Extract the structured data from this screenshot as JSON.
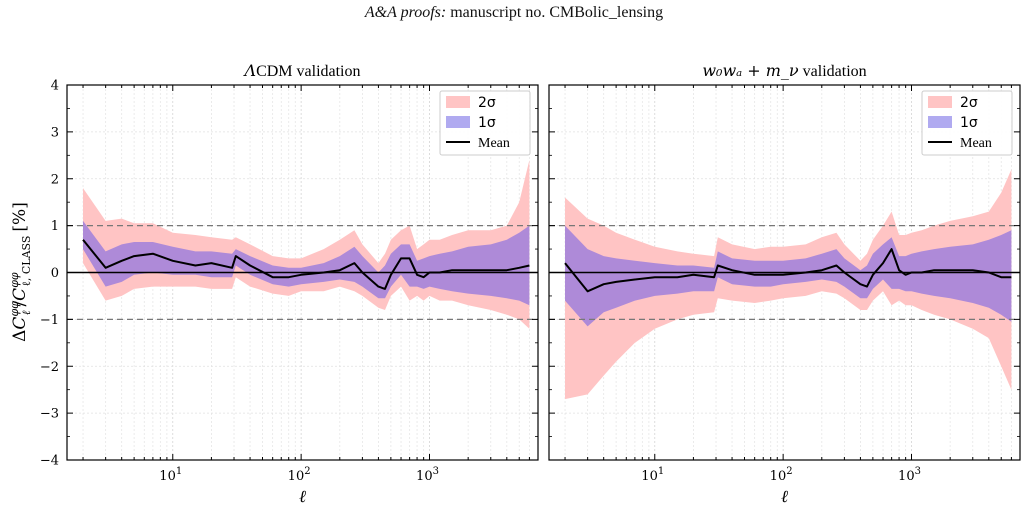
{
  "header": {
    "journal": "A&A proofs:",
    "manuscript": "manuscript no. CMBolic_lensing"
  },
  "ylabel": "ΔC_ℓ^φφ / C_ℓ,CLASS^φφ [%]",
  "chart_data": [
    {
      "type": "area",
      "title": "ΛCDM validation",
      "title_math": "Λ",
      "title_rest": "CDM validation",
      "xlabel": "ℓ",
      "ylabel": "ΔC_ℓ^φφ / C_ℓ,CLASS^φφ [%]",
      "xscale": "log",
      "xlim": [
        1.5,
        7000
      ],
      "ylim": [
        -4,
        4
      ],
      "xticks": [
        {
          "v": 10,
          "label": "10",
          "exp": "1"
        },
        {
          "v": 100,
          "label": "10",
          "exp": "2"
        },
        {
          "v": 1000,
          "label": "10",
          "exp": "3"
        }
      ],
      "yticks": [
        -4,
        -3,
        -2,
        -1,
        0,
        1,
        2,
        3,
        4
      ],
      "reference_lines": [
        {
          "y": 0,
          "style": "solid"
        },
        {
          "y": 1,
          "style": "dashed"
        },
        {
          "y": -1,
          "style": "dashed"
        }
      ],
      "grid": true,
      "legend": {
        "placement": "top-right",
        "entries": [
          {
            "label": "2σ",
            "color": "#ffc4c4"
          },
          {
            "label": "1σ",
            "color": "#b0aaf0"
          },
          {
            "label": "Mean",
            "color": "#000000"
          }
        ]
      },
      "x": [
        2,
        3,
        4,
        5,
        7,
        10,
        15,
        20,
        29,
        31,
        40,
        60,
        80,
        100,
        150,
        200,
        260,
        300,
        400,
        450,
        500,
        600,
        700,
        800,
        900,
        1000,
        1200,
        1500,
        2000,
        3000,
        4000,
        5000,
        6000
      ],
      "series": [
        {
          "name": "2σ upper",
          "values": [
            1.8,
            1.1,
            1.15,
            1.05,
            1.05,
            0.85,
            0.8,
            0.75,
            0.7,
            0.75,
            0.6,
            0.35,
            0.3,
            0.3,
            0.5,
            0.7,
            0.9,
            0.6,
            0.2,
            0.4,
            0.7,
            0.9,
            1.0,
            0.5,
            0.6,
            0.7,
            0.7,
            0.8,
            0.9,
            0.9,
            1.0,
            1.5,
            2.4
          ]
        },
        {
          "name": "2σ lower",
          "values": [
            0.2,
            -0.6,
            -0.5,
            -0.35,
            -0.3,
            -0.3,
            -0.3,
            -0.35,
            -0.35,
            -0.1,
            -0.3,
            -0.45,
            -0.5,
            -0.4,
            -0.4,
            -0.3,
            -0.4,
            -0.5,
            -0.75,
            -0.8,
            -0.5,
            -0.3,
            -0.6,
            -0.5,
            -0.6,
            -0.5,
            -0.6,
            -0.6,
            -0.7,
            -0.8,
            -0.9,
            -1.0,
            -1.2
          ]
        },
        {
          "name": "1σ upper",
          "values": [
            1.1,
            0.45,
            0.6,
            0.65,
            0.65,
            0.55,
            0.45,
            0.45,
            0.4,
            0.5,
            0.35,
            0.15,
            0.1,
            0.1,
            0.2,
            0.35,
            0.55,
            0.35,
            0.0,
            0.15,
            0.4,
            0.6,
            0.6,
            0.25,
            0.3,
            0.35,
            0.4,
            0.45,
            0.55,
            0.6,
            0.7,
            0.85,
            1.0
          ]
        },
        {
          "name": "1σ lower",
          "values": [
            0.5,
            -0.3,
            -0.2,
            -0.05,
            0.0,
            -0.05,
            -0.05,
            -0.1,
            -0.1,
            0.15,
            -0.05,
            -0.25,
            -0.3,
            -0.25,
            -0.2,
            -0.15,
            -0.2,
            -0.3,
            -0.55,
            -0.55,
            -0.3,
            -0.05,
            -0.3,
            -0.3,
            -0.35,
            -0.3,
            -0.35,
            -0.4,
            -0.45,
            -0.5,
            -0.55,
            -0.6,
            -0.7
          ]
        },
        {
          "name": "Mean",
          "values": [
            0.7,
            0.1,
            0.25,
            0.35,
            0.4,
            0.25,
            0.15,
            0.2,
            0.1,
            0.35,
            0.15,
            -0.1,
            -0.1,
            -0.05,
            -0.0,
            0.05,
            0.2,
            0.0,
            -0.3,
            -0.35,
            -0.05,
            0.3,
            0.3,
            -0.05,
            -0.1,
            0.0,
            0.0,
            0.05,
            0.05,
            0.05,
            0.05,
            0.1,
            0.15
          ]
        }
      ]
    },
    {
      "type": "area",
      "title": "w0wa + mν validation",
      "title_math": "w₀wₐ + m_ν",
      "title_rest": " validation",
      "xlabel": "ℓ",
      "xscale": "log",
      "xlim": [
        1.5,
        7000
      ],
      "ylim": [
        -4,
        4
      ],
      "xticks": [
        {
          "v": 10,
          "label": "10",
          "exp": "1"
        },
        {
          "v": 100,
          "label": "10",
          "exp": "2"
        },
        {
          "v": 1000,
          "label": "10",
          "exp": "3"
        }
      ],
      "yticks": [
        -4,
        -3,
        -2,
        -1,
        0,
        1,
        2,
        3,
        4
      ],
      "reference_lines": [
        {
          "y": 0,
          "style": "solid"
        },
        {
          "y": 1,
          "style": "dashed"
        },
        {
          "y": -1,
          "style": "dashed"
        }
      ],
      "grid": true,
      "legend": {
        "placement": "top-right",
        "entries": [
          {
            "label": "2σ",
            "color": "#ffc4c4"
          },
          {
            "label": "1σ",
            "color": "#b0aaf0"
          },
          {
            "label": "Mean",
            "color": "#000000"
          }
        ]
      },
      "x": [
        2,
        3,
        4,
        5,
        7,
        10,
        15,
        20,
        29,
        31,
        40,
        60,
        80,
        100,
        150,
        200,
        260,
        300,
        400,
        450,
        500,
        600,
        700,
        800,
        900,
        1000,
        1200,
        1500,
        2000,
        3000,
        4000,
        5000,
        6000
      ],
      "series": [
        {
          "name": "2σ upper",
          "values": [
            1.6,
            1.15,
            1.0,
            0.85,
            0.7,
            0.55,
            0.45,
            0.4,
            0.35,
            0.75,
            0.6,
            0.5,
            0.55,
            0.55,
            0.6,
            0.75,
            0.85,
            0.6,
            0.25,
            0.4,
            0.7,
            1.0,
            1.3,
            0.8,
            0.8,
            0.85,
            0.9,
            1.0,
            1.1,
            1.2,
            1.3,
            1.7,
            2.2
          ]
        },
        {
          "name": "2σ lower",
          "values": [
            -2.7,
            -2.6,
            -2.2,
            -1.9,
            -1.5,
            -1.2,
            -1.0,
            -0.9,
            -0.85,
            -0.55,
            -0.6,
            -0.65,
            -0.6,
            -0.55,
            -0.5,
            -0.4,
            -0.45,
            -0.55,
            -0.8,
            -0.8,
            -0.6,
            -0.4,
            -0.7,
            -0.6,
            -0.7,
            -0.7,
            -0.8,
            -0.9,
            -1.0,
            -1.2,
            -1.4,
            -2.0,
            -2.5
          ]
        },
        {
          "name": "1σ upper",
          "values": [
            1.0,
            0.5,
            0.35,
            0.3,
            0.25,
            0.2,
            0.15,
            0.15,
            0.1,
            0.45,
            0.3,
            0.25,
            0.25,
            0.25,
            0.3,
            0.4,
            0.5,
            0.3,
            0.05,
            0.15,
            0.4,
            0.6,
            0.75,
            0.35,
            0.35,
            0.4,
            0.45,
            0.5,
            0.55,
            0.6,
            0.7,
            0.8,
            0.9
          ]
        },
        {
          "name": "1σ lower",
          "values": [
            -0.6,
            -1.15,
            -0.85,
            -0.75,
            -0.6,
            -0.5,
            -0.45,
            -0.4,
            -0.4,
            -0.1,
            -0.25,
            -0.3,
            -0.3,
            -0.25,
            -0.2,
            -0.15,
            -0.2,
            -0.3,
            -0.55,
            -0.55,
            -0.35,
            -0.15,
            -0.35,
            -0.35,
            -0.4,
            -0.4,
            -0.45,
            -0.5,
            -0.55,
            -0.65,
            -0.75,
            -0.9,
            -1.05
          ]
        },
        {
          "name": "Mean",
          "values": [
            0.2,
            -0.4,
            -0.25,
            -0.2,
            -0.15,
            -0.1,
            -0.1,
            -0.05,
            -0.1,
            0.15,
            0.05,
            -0.05,
            -0.05,
            -0.05,
            0.0,
            0.05,
            0.15,
            0.0,
            -0.25,
            -0.3,
            -0.05,
            0.2,
            0.5,
            0.05,
            -0.05,
            0.0,
            0.0,
            0.05,
            0.05,
            0.05,
            0.0,
            -0.1,
            -0.1
          ]
        }
      ]
    }
  ]
}
